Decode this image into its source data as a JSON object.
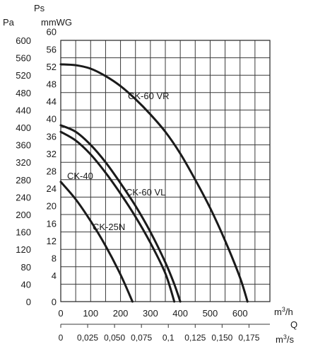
{
  "chart_data": {
    "type": "line",
    "header": {
      "ps": "Ps",
      "pa": "Pa",
      "mmwg": "mmWG"
    },
    "pa_ticks": [
      "600",
      "560",
      "520",
      "480",
      "440",
      "400",
      "360",
      "320",
      "280",
      "240",
      "200",
      "160",
      "120",
      "80",
      "40",
      "0"
    ],
    "mmwg_ticks": [
      "60",
      "56",
      "52",
      "48",
      "44",
      "40",
      "36",
      "32",
      "28",
      "24",
      "20",
      "16",
      "12",
      "8",
      "4",
      "0"
    ],
    "x_m3h_ticks": [
      "0",
      "100",
      "200",
      "300",
      "400",
      "500",
      "600"
    ],
    "x_m3h_unit_html": "m³/h",
    "x_q_label": "Q",
    "x_m3s_ticks": [
      "0",
      "0,025",
      "0,050",
      "0,075",
      "0,1",
      "0,125",
      "0,150",
      "0,175"
    ],
    "x_m3s_unit": "m³/s",
    "ylim_pa": [
      0,
      600
    ],
    "xlim_m3h": [
      0,
      700
    ],
    "series": [
      {
        "name": "CK-60 VR",
        "x": [
          0,
          50,
          100,
          150,
          200,
          250,
          300,
          350,
          400,
          450,
          500,
          550,
          600,
          625
        ],
        "y": [
          545,
          543,
          535,
          518,
          495,
          465,
          430,
          390,
          340,
          280,
          215,
          140,
          55,
          0
        ]
      },
      {
        "name": "CK-60 VL",
        "x": [
          0,
          50,
          100,
          150,
          200,
          250,
          300,
          350,
          380,
          400
        ],
        "y": [
          405,
          390,
          360,
          320,
          272,
          220,
          160,
          90,
          40,
          0
        ]
      },
      {
        "name": "CK-40",
        "x": [
          0,
          50,
          100,
          150,
          200,
          250,
          300,
          350,
          380
        ],
        "y": [
          390,
          370,
          338,
          296,
          248,
          195,
          135,
          65,
          0
        ]
      },
      {
        "name": "CK-25N",
        "x": [
          0,
          50,
          100,
          150,
          200,
          240
        ],
        "y": [
          275,
          235,
          185,
          128,
          62,
          0
        ]
      }
    ]
  }
}
